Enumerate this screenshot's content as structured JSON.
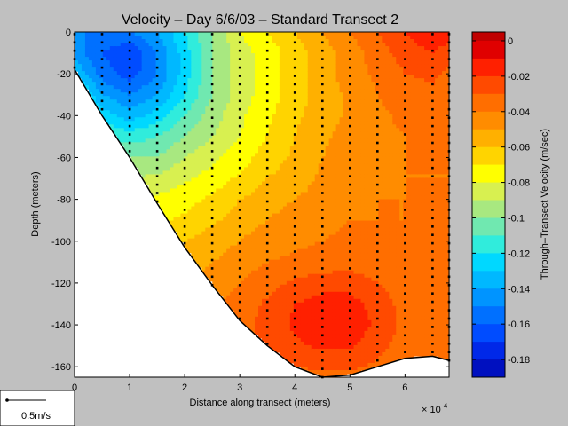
{
  "chart_data": {
    "type": "contour",
    "title": "Velocity – Day 6/6/03 – Standard Transect 2",
    "xlabel": "Distance along transect (meters)",
    "ylabel": "Depth (meters)",
    "x_scale_label": "× 10",
    "x_scale_exponent": "4",
    "xlim": [
      0,
      68000
    ],
    "ylim": [
      -165,
      0
    ],
    "x_ticks": [
      0,
      1,
      2,
      3,
      4,
      5,
      6
    ],
    "y_ticks": [
      0,
      -20,
      -40,
      -60,
      -80,
      -100,
      -120,
      -140,
      -160
    ],
    "colorbar": {
      "label": "Through–Transect Velocity (m/sec)",
      "range": [
        -0.19,
        0.005
      ],
      "ticks": [
        0,
        -0.02,
        -0.04,
        -0.06,
        -0.08,
        -0.1,
        -0.12,
        -0.14,
        -0.16,
        -0.18
      ],
      "levels": [
        {
          "from": 0.0,
          "to": 0.01,
          "color": "#c00000"
        },
        {
          "from": -0.01,
          "to": 0.0,
          "color": "#e00000"
        },
        {
          "from": -0.02,
          "to": -0.01,
          "color": "#ff2000"
        },
        {
          "from": -0.03,
          "to": -0.02,
          "color": "#ff4a00"
        },
        {
          "from": -0.04,
          "to": -0.03,
          "color": "#ff6e00"
        },
        {
          "from": -0.05,
          "to": -0.04,
          "color": "#ff8c00"
        },
        {
          "from": -0.06,
          "to": -0.05,
          "color": "#ffb000"
        },
        {
          "from": -0.07,
          "to": -0.06,
          "color": "#ffd400"
        },
        {
          "from": -0.08,
          "to": -0.07,
          "color": "#ffff00"
        },
        {
          "from": -0.09,
          "to": -0.08,
          "color": "#d8f050"
        },
        {
          "from": -0.1,
          "to": -0.09,
          "color": "#a8e880"
        },
        {
          "from": -0.11,
          "to": -0.1,
          "color": "#70e8b0"
        },
        {
          "from": -0.12,
          "to": -0.11,
          "color": "#30ecdc"
        },
        {
          "from": -0.13,
          "to": -0.12,
          "color": "#00d8ff"
        },
        {
          "from": -0.14,
          "to": -0.13,
          "color": "#00b8ff"
        },
        {
          "from": -0.15,
          "to": -0.14,
          "color": "#0094ff"
        },
        {
          "from": -0.16,
          "to": -0.15,
          "color": "#0070ff"
        },
        {
          "from": -0.17,
          "to": -0.16,
          "color": "#004cff"
        },
        {
          "from": -0.18,
          "to": -0.17,
          "color": "#0028e8"
        },
        {
          "from": -0.19,
          "to": -0.18,
          "color": "#0010c0"
        }
      ]
    },
    "bottom_profile": [
      [
        0,
        -18
      ],
      [
        5000,
        -40
      ],
      [
        10000,
        -60
      ],
      [
        15000,
        -82
      ],
      [
        20000,
        -103
      ],
      [
        25000,
        -121
      ],
      [
        30000,
        -138
      ],
      [
        35000,
        -150
      ],
      [
        40000,
        -160
      ],
      [
        45000,
        -165
      ],
      [
        50000,
        -164
      ],
      [
        55000,
        -160
      ],
      [
        60000,
        -156
      ],
      [
        65000,
        -155
      ],
      [
        68000,
        -157
      ]
    ],
    "velocity_field": {
      "x": [
        0,
        5000,
        10000,
        15000,
        20000,
        25000,
        30000,
        35000,
        40000,
        45000,
        50000,
        55000,
        60000,
        65000,
        68000
      ],
      "depth": [
        0,
        -10,
        -20,
        -30,
        -40,
        -50,
        -60,
        -70,
        -80,
        -90,
        -100,
        -110,
        -120,
        -130,
        -140,
        -150,
        -160,
        -165
      ],
      "values": [
        [
          -0.15,
          -0.15,
          -0.15,
          -0.14,
          -0.12,
          -0.1,
          -0.08,
          -0.07,
          -0.06,
          -0.05,
          -0.04,
          -0.03,
          -0.02,
          -0.012,
          -0.015
        ],
        [
          -0.145,
          -0.16,
          -0.17,
          -0.15,
          -0.125,
          -0.1,
          -0.085,
          -0.075,
          -0.065,
          -0.055,
          -0.045,
          -0.035,
          -0.025,
          -0.02,
          -0.025
        ],
        [
          -0.13,
          -0.155,
          -0.165,
          -0.15,
          -0.125,
          -0.1,
          -0.085,
          -0.075,
          -0.065,
          -0.055,
          -0.045,
          -0.038,
          -0.03,
          -0.028,
          -0.032
        ],
        [
          -0.11,
          -0.14,
          -0.15,
          -0.14,
          -0.12,
          -0.1,
          -0.085,
          -0.075,
          -0.065,
          -0.055,
          -0.048,
          -0.04,
          -0.035,
          -0.032,
          -0.035
        ],
        [
          -0.1,
          -0.125,
          -0.135,
          -0.125,
          -0.11,
          -0.095,
          -0.082,
          -0.072,
          -0.062,
          -0.055,
          -0.048,
          -0.042,
          -0.038,
          -0.035,
          -0.037
        ],
        [
          -0.09,
          -0.11,
          -0.115,
          -0.11,
          -0.1,
          -0.09,
          -0.08,
          -0.07,
          -0.06,
          -0.052,
          -0.046,
          -0.042,
          -0.04,
          -0.038,
          -0.04
        ],
        [
          -0.085,
          -0.095,
          -0.1,
          -0.1,
          -0.09,
          -0.082,
          -0.075,
          -0.065,
          -0.058,
          -0.05,
          -0.045,
          -0.042,
          -0.04,
          -0.04,
          -0.04
        ],
        [
          -0.08,
          -0.085,
          -0.09,
          -0.088,
          -0.082,
          -0.076,
          -0.068,
          -0.06,
          -0.055,
          -0.048,
          -0.044,
          -0.042,
          -0.04,
          -0.04,
          -0.04
        ],
        [
          -0.075,
          -0.08,
          -0.08,
          -0.078,
          -0.074,
          -0.068,
          -0.06,
          -0.055,
          -0.05,
          -0.046,
          -0.042,
          -0.04,
          -0.04,
          -0.04,
          -0.04
        ],
        [
          -0.07,
          -0.072,
          -0.072,
          -0.072,
          -0.068,
          -0.062,
          -0.055,
          -0.05,
          -0.045,
          -0.043,
          -0.04,
          -0.04,
          -0.04,
          -0.04,
          -0.04
        ],
        [
          -0.065,
          -0.065,
          -0.065,
          -0.064,
          -0.06,
          -0.055,
          -0.05,
          -0.045,
          -0.042,
          -0.04,
          -0.038,
          -0.038,
          -0.04,
          -0.04,
          -0.04
        ],
        [
          -0.06,
          -0.06,
          -0.06,
          -0.06,
          -0.055,
          -0.05,
          -0.045,
          -0.04,
          -0.038,
          -0.036,
          -0.035,
          -0.036,
          -0.038,
          -0.04,
          -0.04
        ],
        [
          -0.055,
          -0.055,
          -0.055,
          -0.055,
          -0.05,
          -0.045,
          -0.04,
          -0.034,
          -0.028,
          -0.024,
          -0.024,
          -0.03,
          -0.036,
          -0.04,
          -0.04
        ],
        [
          -0.05,
          -0.05,
          -0.05,
          -0.05,
          -0.046,
          -0.042,
          -0.036,
          -0.028,
          -0.02,
          -0.016,
          -0.016,
          -0.024,
          -0.034,
          -0.04,
          -0.04
        ],
        [
          -0.048,
          -0.048,
          -0.048,
          -0.048,
          -0.044,
          -0.04,
          -0.034,
          -0.026,
          -0.018,
          -0.014,
          -0.014,
          -0.022,
          -0.033,
          -0.04,
          -0.04
        ],
        [
          -0.045,
          -0.045,
          -0.045,
          -0.045,
          -0.042,
          -0.04,
          -0.034,
          -0.028,
          -0.022,
          -0.018,
          -0.018,
          -0.026,
          -0.036,
          -0.04,
          -0.04
        ],
        [
          -0.045,
          -0.045,
          -0.045,
          -0.045,
          -0.042,
          -0.04,
          -0.036,
          -0.032,
          -0.03,
          -0.028,
          -0.028,
          -0.032,
          -0.038,
          -0.04,
          -0.04
        ],
        [
          -0.045,
          -0.045,
          -0.045,
          -0.045,
          -0.042,
          -0.04,
          -0.038,
          -0.036,
          -0.035,
          -0.034,
          -0.034,
          -0.036,
          -0.038,
          -0.04,
          -0.04
        ]
      ]
    },
    "sample_stations_x": [
      0,
      5000,
      10000,
      15000,
      20000,
      25000,
      30000,
      35000,
      40000,
      45000,
      50000,
      55000,
      60000,
      65000,
      68000
    ],
    "sample_depth_spacing": 4,
    "scale_arrow_label": "0.5m/s"
  }
}
